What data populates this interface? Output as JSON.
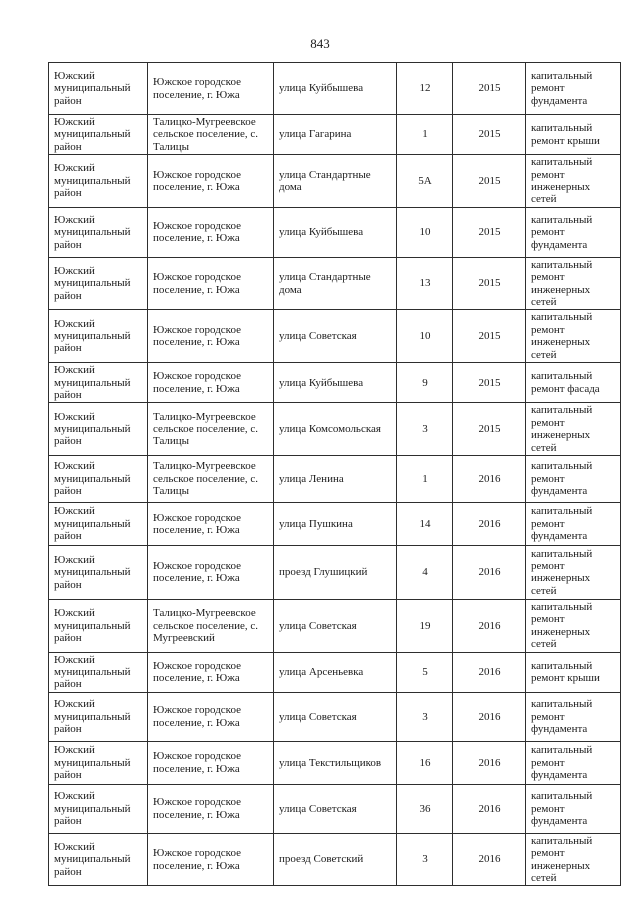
{
  "page": {
    "number": "843"
  },
  "colors": {
    "page_background": "#ffffff",
    "text": "#1c1c1c",
    "table_border": "#2e2e2e"
  },
  "table": {
    "rows": [
      {
        "cells": [
          "Южский муниципальный район",
          "Южское городское поселение, г. Южа",
          "улица Куйбышева",
          "12",
          "2015",
          "капитальный ремонт фундамента"
        ]
      },
      {
        "cells": [
          "Южский муниципальный район",
          "Талицко-Мугреевское сельское поселение, с. Талицы",
          "улица Гагарина",
          "1",
          "2015",
          "капитальный ремонт крыши"
        ]
      },
      {
        "cells": [
          "Южский муниципальный район",
          "Южское городское поселение, г. Южа",
          "улица Стандартные дома",
          "5А",
          "2015",
          "капитальный ремонт инженерных сетей"
        ]
      },
      {
        "cells": [
          "Южский муниципальный район",
          "Южское городское поселение, г. Южа",
          "улица Куйбышева",
          "10",
          "2015",
          "капитальный ремонт фундамента"
        ]
      },
      {
        "cells": [
          "Южский муниципальный район",
          "Южское городское поселение, г. Южа",
          "улица Стандартные дома",
          "13",
          "2015",
          "капитальный ремонт инженерных сетей"
        ]
      },
      {
        "cells": [
          "Южский муниципальный район",
          "Южское городское поселение, г. Южа",
          "улица Советская",
          "10",
          "2015",
          "капитальный ремонт инженерных сетей"
        ]
      },
      {
        "cells": [
          "Южский муниципальный район",
          "Южское городское поселение, г. Южа",
          "улица Куйбышева",
          "9",
          "2015",
          "капитальный ремонт фасада"
        ]
      },
      {
        "cells": [
          "Южский муниципальный район",
          "Талицко-Мугреевское сельское поселение, с. Талицы",
          "улица Комсомольская",
          "3",
          "2015",
          "капитальный ремонт инженерных сетей"
        ]
      },
      {
        "cells": [
          "Южский муниципальный район",
          "Талицко-Мугреевское сельское поселение, с. Талицы",
          "улица Ленина",
          "1",
          "2016",
          "капитальный ремонт фундамента"
        ]
      },
      {
        "cells": [
          "Южский муниципальный район",
          "Южское городское поселение, г. Южа",
          "улица Пушкина",
          "14",
          "2016",
          "капитальный ремонт фундамента"
        ]
      },
      {
        "cells": [
          "Южский муниципальный район",
          "Южское городское поселение, г. Южа",
          "проезд Глушицкий",
          "4",
          "2016",
          "капитальный ремонт инженерных сетей"
        ]
      },
      {
        "cells": [
          "Южский муниципальный район",
          "Талицко-Мугреевское сельское поселение, с. Мугреевский",
          "улица Советская",
          "19",
          "2016",
          "капитальный ремонт инженерных сетей"
        ]
      },
      {
        "cells": [
          "Южский муниципальный район",
          "Южское городское поселение, г. Южа",
          "улица Арсеньевка",
          "5",
          "2016",
          "капитальный ремонт крыши"
        ]
      },
      {
        "cells": [
          "Южский муниципальный район",
          "Южское городское поселение, г. Южа",
          "улица Советская",
          "3",
          "2016",
          "капитальный ремонт фундамента"
        ]
      },
      {
        "cells": [
          "Южский муниципальный район",
          "Южское городское поселение, г. Южа",
          "улица Текстильщиков",
          "16",
          "2016",
          "капитальный ремонт фундамента"
        ]
      },
      {
        "cells": [
          "Южский муниципальный район",
          "Южское городское поселение, г. Южа",
          "улица Советская",
          "36",
          "2016",
          "капитальный ремонт фундамента"
        ]
      },
      {
        "cells": [
          "Южский муниципальный район",
          "Южское городское поселение, г. Южа",
          "проезд Советский",
          "3",
          "2016",
          "капитальный ремонт инженерных сетей"
        ]
      }
    ]
  }
}
